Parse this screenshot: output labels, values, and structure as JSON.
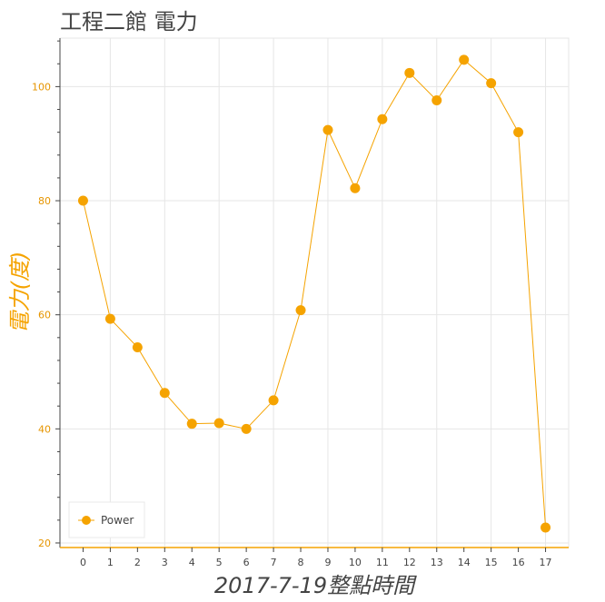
{
  "chart_data": {
    "type": "line",
    "title": "工程二館 電力",
    "xlabel": "2017-7-19整點時間",
    "ylabel": "電力(度)",
    "x": [
      0,
      1,
      2,
      3,
      4,
      5,
      6,
      7,
      8,
      9,
      10,
      11,
      12,
      13,
      14,
      15,
      16,
      17
    ],
    "series": [
      {
        "name": "Power",
        "color": "#f5a300",
        "values": [
          80.0,
          59.3,
          54.3,
          46.3,
          40.9,
          41.0,
          40.0,
          45.0,
          60.8,
          92.4,
          82.2,
          94.3,
          102.4,
          97.6,
          104.7,
          100.6,
          92.0,
          22.7
        ]
      }
    ],
    "xlim": [
      -0.85,
      17.85
    ],
    "ylim": [
      19.2,
      108.5
    ],
    "x_ticks": [
      0,
      1,
      2,
      3,
      4,
      5,
      6,
      7,
      8,
      9,
      10,
      11,
      12,
      13,
      14,
      15,
      16,
      17
    ],
    "y_ticks": [
      20,
      40,
      60,
      80,
      100
    ],
    "grid": true,
    "legend_position": "bottom-left",
    "accent_color": "#f5a300",
    "ylabel_color": "#f5a300"
  }
}
